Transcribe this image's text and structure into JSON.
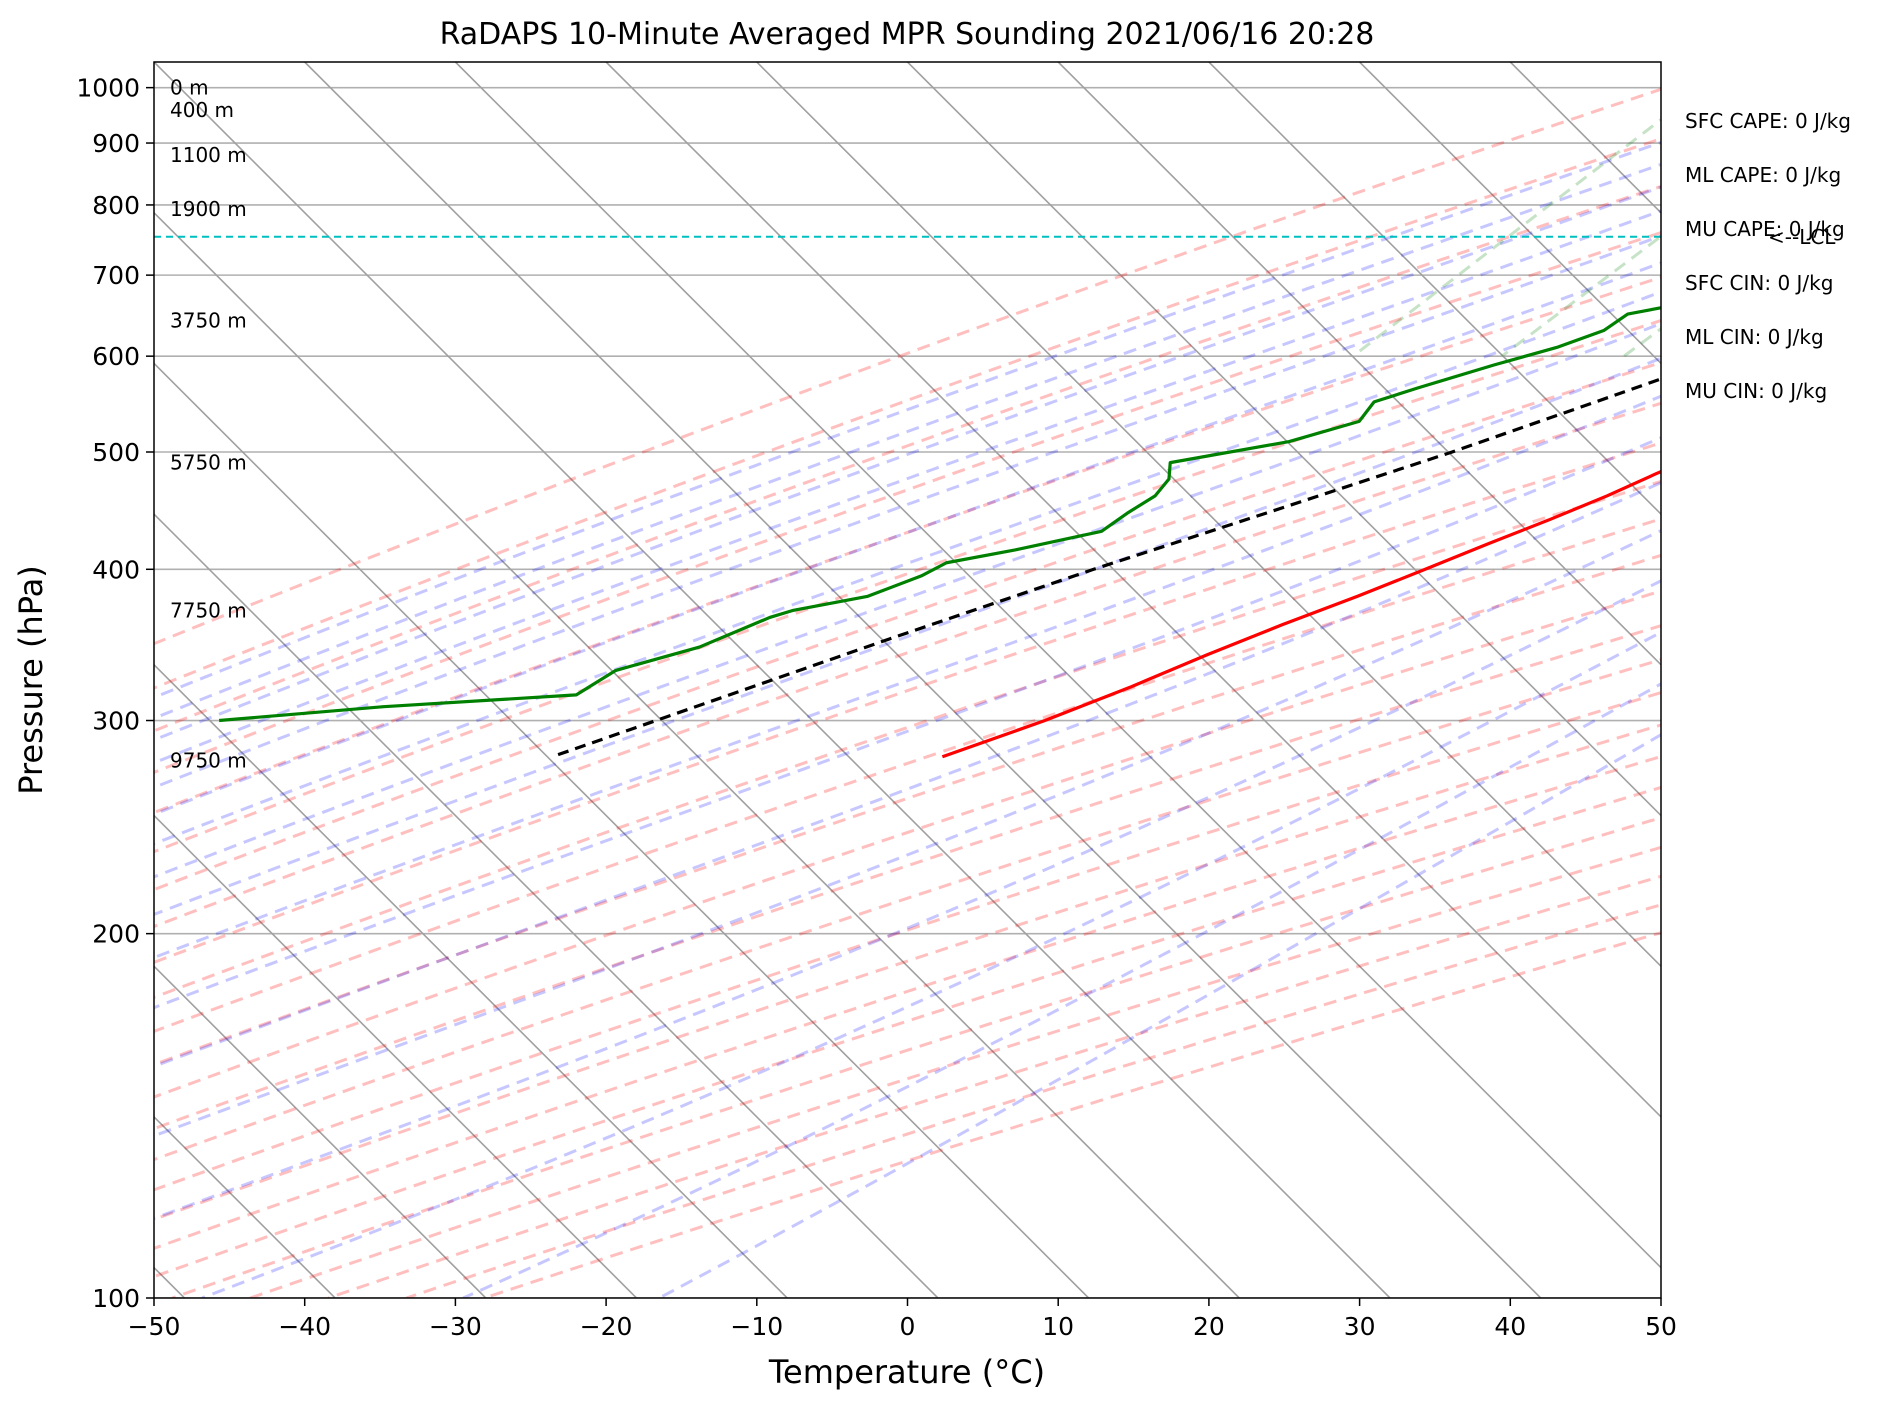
{
  "chart_data": {
    "type": "line",
    "title": "RaDAPS 10-Minute Averaged MPR Sounding 2021/06/16 20:28",
    "xlabel": "Temperature (°C)",
    "ylabel": "Pressure (hPa)",
    "xlim": [
      -50,
      50
    ],
    "ylim": [
      1050,
      100
    ],
    "y_scale": "log",
    "skew_degrees": 45,
    "grid": true,
    "x_ticks": [
      {
        "value": -50,
        "label": "−50"
      },
      {
        "value": -40,
        "label": "−40"
      },
      {
        "value": -30,
        "label": "−30"
      },
      {
        "value": -20,
        "label": "−20"
      },
      {
        "value": -10,
        "label": "−10"
      },
      {
        "value": 0,
        "label": "0"
      },
      {
        "value": 10,
        "label": "10"
      },
      {
        "value": 20,
        "label": "20"
      },
      {
        "value": 30,
        "label": "30"
      },
      {
        "value": 40,
        "label": "40"
      },
      {
        "value": 50,
        "label": "50"
      }
    ],
    "y_ticks": [
      {
        "value": 100,
        "label": "100"
      },
      {
        "value": 200,
        "label": "200"
      },
      {
        "value": 300,
        "label": "300"
      },
      {
        "value": 400,
        "label": "400"
      },
      {
        "value": 500,
        "label": "500"
      },
      {
        "value": 600,
        "label": "600"
      },
      {
        "value": 700,
        "label": "700"
      },
      {
        "value": 800,
        "label": "800"
      },
      {
        "value": 900,
        "label": "900"
      },
      {
        "value": 1000,
        "label": "1000"
      }
    ],
    "series": [
      {
        "role": "temperature",
        "color": "#ff0000",
        "points": [
          {
            "p": 995,
            "t": 31.2
          },
          {
            "p": 990,
            "t": 27
          },
          {
            "p": 985,
            "t": 24.5
          },
          {
            "p": 975,
            "t": 22
          },
          {
            "p": 960,
            "t": 21
          },
          {
            "p": 945,
            "t": 20.8
          },
          {
            "p": 930,
            "t": 21.5
          },
          {
            "p": 910,
            "t": 23
          },
          {
            "p": 890,
            "t": 23.5
          },
          {
            "p": 870,
            "t": 23.1
          },
          {
            "p": 850,
            "t": 22.8
          },
          {
            "p": 820,
            "t": 22.2
          },
          {
            "p": 800,
            "t": 21.1
          },
          {
            "p": 780,
            "t": 20.0
          },
          {
            "p": 760,
            "t": 19.0
          },
          {
            "p": 730,
            "t": 18.0
          },
          {
            "p": 700,
            "t": 16.2
          },
          {
            "p": 670,
            "t": 14.0
          },
          {
            "p": 640,
            "t": 11.3
          },
          {
            "p": 610,
            "t": 8.4
          },
          {
            "p": 580,
            "t": 5.6
          },
          {
            "p": 550,
            "t": 2.8
          },
          {
            "p": 520,
            "t": -0.8
          },
          {
            "p": 500,
            "t": -3.0
          },
          {
            "p": 480,
            "t": -5.0
          },
          {
            "p": 460,
            "t": -6.8
          },
          {
            "p": 440,
            "t": -9.0
          },
          {
            "p": 420,
            "t": -11.5
          },
          {
            "p": 400,
            "t": -14.0
          },
          {
            "p": 380,
            "t": -16.7
          },
          {
            "p": 360,
            "t": -19.8
          },
          {
            "p": 340,
            "t": -22.8
          },
          {
            "p": 320,
            "t": -25.7
          },
          {
            "p": 300,
            "t": -29.2
          },
          {
            "p": 280,
            "t": -33.6
          }
        ]
      },
      {
        "role": "dewpoint",
        "color": "#008000",
        "points": [
          {
            "p": 995,
            "t": 12.3
          },
          {
            "p": 990,
            "t": 8.5
          },
          {
            "p": 985,
            "t": 5.2
          },
          {
            "p": 975,
            "t": 4.2
          },
          {
            "p": 960,
            "t": 4.5
          },
          {
            "p": 945,
            "t": 5.2
          },
          {
            "p": 930,
            "t": 6.5
          },
          {
            "p": 910,
            "t": 7.2
          },
          {
            "p": 895,
            "t": 6.8
          },
          {
            "p": 880,
            "t": 6.0
          },
          {
            "p": 860,
            "t": 5.5
          },
          {
            "p": 840,
            "t": 5.4
          },
          {
            "p": 825,
            "t": 5.6
          },
          {
            "p": 810,
            "t": 5.0
          },
          {
            "p": 790,
            "t": 4.0
          },
          {
            "p": 765,
            "t": -1.5
          },
          {
            "p": 740,
            "t": -5.0
          },
          {
            "p": 710,
            "t": -6.0
          },
          {
            "p": 690,
            "t": -7.0
          },
          {
            "p": 670,
            "t": -13.0
          },
          {
            "p": 650,
            "t": -17.5
          },
          {
            "p": 630,
            "t": -18.0
          },
          {
            "p": 610,
            "t": -20.0
          },
          {
            "p": 590,
            "t": -23.0
          },
          {
            "p": 565,
            "t": -26.5
          },
          {
            "p": 550,
            "t": -28.5
          },
          {
            "p": 530,
            "t": -28.2
          },
          {
            "p": 510,
            "t": -31.5
          },
          {
            "p": 490,
            "t": -38.0
          },
          {
            "p": 475,
            "t": -37.0
          },
          {
            "p": 460,
            "t": -36.8
          },
          {
            "p": 445,
            "t": -37.5
          },
          {
            "p": 430,
            "t": -38.0
          },
          {
            "p": 415,
            "t": -42.5
          },
          {
            "p": 405,
            "t": -46.2
          },
          {
            "p": 395,
            "t": -47.0
          },
          {
            "p": 380,
            "t": -49.2
          },
          {
            "p": 370,
            "t": -53.2
          },
          {
            "p": 365,
            "t": -54.3
          },
          {
            "p": 345,
            "t": -57.0
          },
          {
            "p": 330,
            "t": -61.0
          },
          {
            "p": 315,
            "t": -62.0
          },
          {
            "p": 308,
            "t": -74.0
          },
          {
            "p": 300,
            "t": -84.0
          }
        ]
      },
      {
        "role": "parcel",
        "color": "#000000",
        "style": "dashed",
        "points": [
          {
            "p": 995,
            "t": 31.2
          },
          {
            "p": 950,
            "t": 26.5
          },
          {
            "p": 900,
            "t": 21.0
          },
          {
            "p": 850,
            "t": 15.5
          },
          {
            "p": 800,
            "t": 9.5
          },
          {
            "p": 760,
            "t": 5.0
          },
          {
            "p": 740,
            "t": 3.5
          },
          {
            "p": 700,
            "t": 0.8
          },
          {
            "p": 650,
            "t": -3.5
          },
          {
            "p": 600,
            "t": -8.2
          },
          {
            "p": 550,
            "t": -13.8
          },
          {
            "p": 500,
            "t": -20.0
          },
          {
            "p": 450,
            "t": -27.5
          },
          {
            "p": 400,
            "t": -36.0
          },
          {
            "p": 350,
            "t": -45.0
          },
          {
            "p": 300,
            "t": -55.0
          },
          {
            "p": 280,
            "t": -59.5
          }
        ]
      }
    ],
    "background_lines": {
      "dry_adiabats": {
        "color": "#ff0000"
      },
      "moist_adiabats": {
        "color": "#0000ff"
      },
      "mixing_ratio": {
        "color": "#008000",
        "top_pressure": 600
      }
    },
    "lcl": {
      "pressure": 753,
      "label": "<--LCL",
      "color": "#00bfbf"
    },
    "height_labels": [
      {
        "p": 278,
        "text": "9750 m"
      },
      {
        "p": 370,
        "text": "7750 m"
      },
      {
        "p": 490,
        "text": "5750 m"
      },
      {
        "p": 642,
        "text": "3750 m"
      },
      {
        "p": 794,
        "text": "1900 m"
      },
      {
        "p": 880,
        "text": "1100 m"
      },
      {
        "p": 958,
        "text": "400 m"
      },
      {
        "p": 1000,
        "text": "0 m"
      }
    ],
    "indices": [
      {
        "label": "SFC CAPE: 0 J/kg"
      },
      {
        "label": "ML CAPE: 0 J/kg"
      },
      {
        "label": "MU CAPE: 0 J/kg"
      },
      {
        "label": "SFC CIN: 0 J/kg"
      },
      {
        "label": "ML CIN: 0 J/kg"
      },
      {
        "label": "MU CIN: 0 J/kg"
      }
    ]
  }
}
